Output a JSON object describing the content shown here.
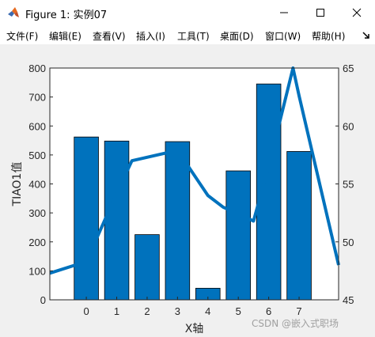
{
  "window": {
    "title": "Figure 1: 实例07",
    "icon": "matlab-logo-icon",
    "controls": [
      "minimize-icon",
      "maximize-icon",
      "close-icon"
    ]
  },
  "menu": {
    "items": [
      {
        "label": "文件(F)"
      },
      {
        "label": "编辑(E)"
      },
      {
        "label": "查看(V)"
      },
      {
        "label": "插入(I)"
      },
      {
        "label": "工具(T)"
      },
      {
        "label": "桌面(D)"
      },
      {
        "label": "窗口(W)"
      },
      {
        "label": "帮助(H)"
      }
    ],
    "overflow_icon": "toolbar-arrow-icon"
  },
  "chart_data": {
    "type": "bar+line",
    "xlabel": "X轴",
    "ylabel_left": "TIAO1值",
    "ylabel_right": "",
    "x_ticks": [
      "0",
      "1",
      "2",
      "3",
      "4",
      "5",
      "6",
      "7"
    ],
    "left_ticks": [
      "0",
      "100",
      "200",
      "300",
      "400",
      "500",
      "600",
      "700",
      "800"
    ],
    "right_ticks": [
      "45",
      "50",
      "55",
      "60",
      "65"
    ],
    "left_ylim": [
      0,
      800
    ],
    "right_ylim": [
      45,
      65
    ],
    "xlim": [
      -1.2,
      8.3
    ],
    "bars": {
      "x": [
        0,
        1,
        2,
        3,
        4,
        5,
        6,
        7
      ],
      "values": [
        562,
        548,
        225,
        546,
        40,
        445,
        745,
        512
      ],
      "color": "#0072bd"
    },
    "line": {
      "x": [
        -1.2,
        0,
        1,
        1.5,
        3,
        4,
        4.5,
        5.5,
        6,
        6.8,
        7,
        8.3
      ],
      "values": [
        47.3,
        48.3,
        54.2,
        57.0,
        57.9,
        54.0,
        53.0,
        51.8,
        56.5,
        65.0,
        62.6,
        48.0
      ],
      "color": "#0072bd"
    },
    "grid": false,
    "legend": "none"
  },
  "watermark": "CSDN @嵌入式职场"
}
